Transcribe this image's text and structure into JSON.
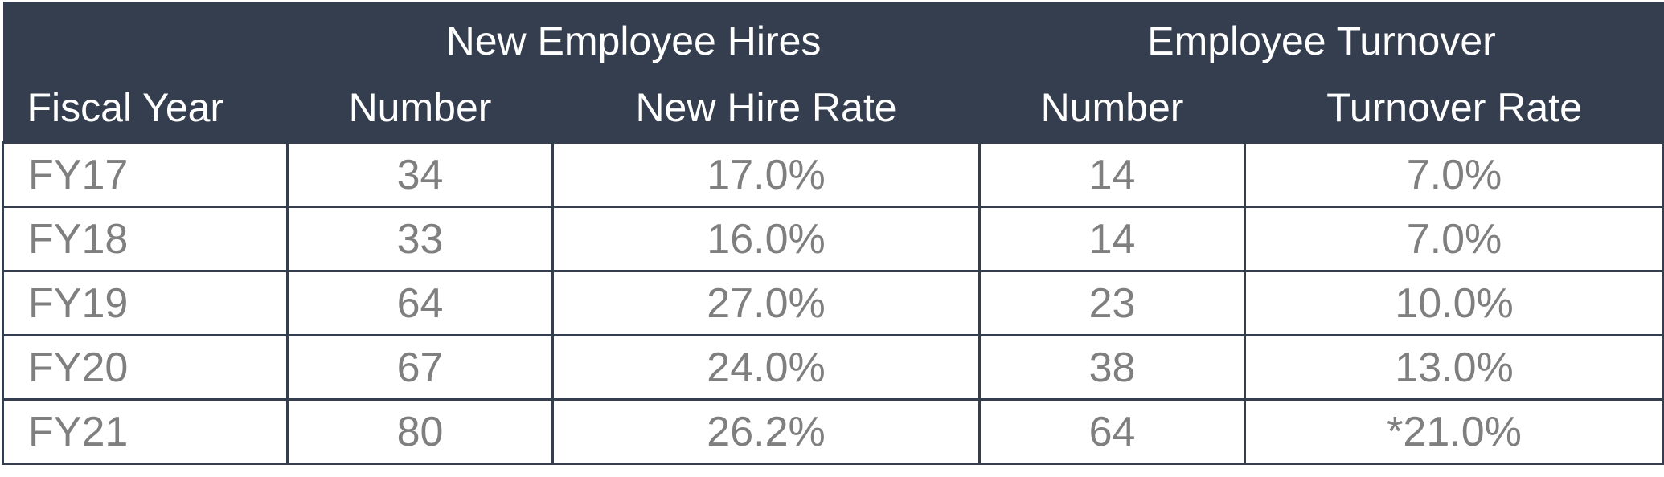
{
  "table": {
    "group_headers": [
      "New Employee Hires",
      "Employee Turnover"
    ],
    "columns": [
      "Fiscal Year",
      "Number",
      "New Hire Rate",
      "Number",
      "Turnover Rate"
    ],
    "rows": [
      [
        "FY17",
        "34",
        "17.0%",
        "14",
        "7.0%"
      ],
      [
        "FY18",
        "33",
        "16.0%",
        "14",
        "7.0%"
      ],
      [
        "FY19",
        "64",
        "27.0%",
        "23",
        "10.0%"
      ],
      [
        "FY20",
        "67",
        "24.0%",
        "38",
        "13.0%"
      ],
      [
        "FY21",
        "80",
        "26.2%",
        "64",
        "*21.0%"
      ]
    ]
  }
}
